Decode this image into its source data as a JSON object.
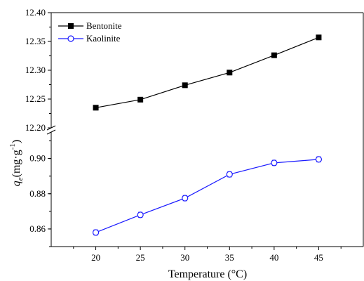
{
  "chart_data": {
    "type": "line",
    "broken_y_axis": true,
    "x": [
      20,
      25,
      30,
      35,
      40,
      45
    ],
    "xticks": [
      "20",
      "25",
      "30",
      "35",
      "40",
      "45"
    ],
    "xlim": [
      15,
      50
    ],
    "xlabel": "Temperature (°C)",
    "ylabel": "q_e(mg·g^-1)",
    "ylim_upper": [
      12.2,
      12.4
    ],
    "ylim_lower": [
      0.85,
      0.915
    ],
    "yticks_upper": [
      "12.20",
      "12.25",
      "12.30",
      "12.35",
      "12.40"
    ],
    "yticks_lower": [
      "0.86",
      "0.88",
      "0.90"
    ],
    "legend_position": "top-left",
    "series": [
      {
        "name": "Bentonite",
        "segment": "upper",
        "marker": "filled-square",
        "color": "#000000",
        "values": [
          12.235,
          12.249,
          12.274,
          12.296,
          12.326,
          12.357
        ],
        "error": [
          0.004,
          0.004,
          0.004,
          0.004,
          0.004,
          0.004
        ]
      },
      {
        "name": "Kaolinite",
        "segment": "lower",
        "marker": "open-circle",
        "color": "#1a1aff",
        "values": [
          0.858,
          0.868,
          0.8775,
          0.891,
          0.8975,
          0.8995
        ],
        "error": [
          0.0015,
          0.0015,
          0.0015,
          0.0015,
          0.0015,
          0.0015
        ]
      }
    ]
  }
}
